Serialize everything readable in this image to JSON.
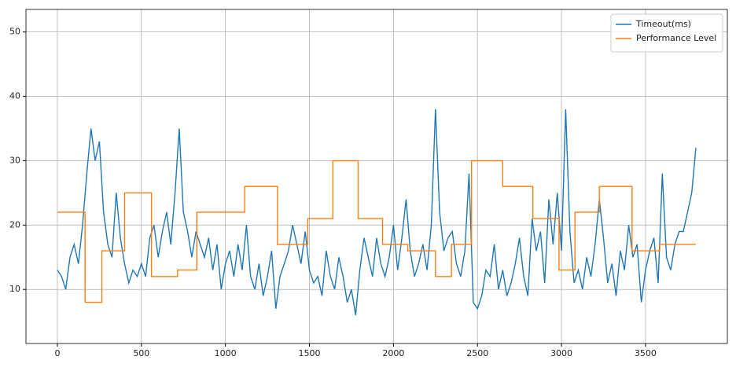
{
  "chart_data": {
    "type": "line",
    "grid": true,
    "legend": "upper right",
    "xlim": [
      -187,
      3987
    ],
    "xticks": [
      0,
      500,
      1000,
      1500,
      2000,
      2500,
      3000,
      3500
    ],
    "ylim": [
      1.6,
      53.5
    ],
    "yticks": [
      10,
      20,
      30,
      40,
      50
    ],
    "series": [
      {
        "name": "Timeout(ms)",
        "color": "#1f77b4",
        "x": [
          0,
          25,
          50,
          75,
          100,
          125,
          150,
          175,
          200,
          225,
          250,
          275,
          300,
          325,
          350,
          375,
          400,
          425,
          450,
          475,
          500,
          525,
          550,
          575,
          600,
          625,
          650,
          675,
          700,
          725,
          750,
          775,
          800,
          825,
          850,
          875,
          900,
          925,
          950,
          975,
          1000,
          1025,
          1050,
          1075,
          1100,
          1125,
          1150,
          1175,
          1200,
          1225,
          1250,
          1275,
          1300,
          1325,
          1350,
          1375,
          1400,
          1425,
          1450,
          1475,
          1500,
          1525,
          1550,
          1575,
          1600,
          1625,
          1650,
          1675,
          1700,
          1725,
          1750,
          1775,
          1800,
          1825,
          1850,
          1875,
          1900,
          1925,
          1950,
          1975,
          2000,
          2025,
          2050,
          2075,
          2100,
          2125,
          2150,
          2175,
          2200,
          2225,
          2250,
          2275,
          2300,
          2325,
          2350,
          2375,
          2400,
          2425,
          2450,
          2475,
          2500,
          2525,
          2550,
          2575,
          2600,
          2625,
          2650,
          2675,
          2700,
          2725,
          2750,
          2775,
          2800,
          2825,
          2850,
          2875,
          2900,
          2925,
          2950,
          2975,
          3000,
          3025,
          3050,
          3075,
          3100,
          3125,
          3150,
          3175,
          3200,
          3225,
          3250,
          3275,
          3300,
          3325,
          3350,
          3375,
          3400,
          3425,
          3450,
          3475,
          3500,
          3525,
          3550,
          3575,
          3600,
          3625,
          3650,
          3675,
          3700,
          3725,
          3750,
          3775,
          3800
        ],
        "values": [
          13,
          12,
          10,
          15,
          17,
          14,
          20,
          28,
          35,
          30,
          33,
          22,
          17,
          15,
          25,
          18,
          14,
          11,
          13,
          12,
          14,
          12,
          18,
          20,
          15,
          19,
          22,
          17,
          25,
          35,
          22,
          19,
          15,
          19,
          17,
          15,
          18,
          13,
          17,
          10,
          14,
          16,
          12,
          17,
          13,
          20,
          12,
          10,
          14,
          9,
          12,
          16,
          7,
          12,
          14,
          16,
          20,
          17,
          14,
          19,
          13,
          11,
          12,
          9,
          16,
          12,
          10,
          15,
          12,
          8,
          10,
          6,
          13,
          18,
          15,
          12,
          18,
          14,
          12,
          15,
          20,
          13,
          18,
          24,
          16,
          12,
          14,
          17,
          13,
          20,
          38,
          22,
          16,
          18,
          19,
          14,
          12,
          16,
          28,
          8,
          7,
          9,
          13,
          12,
          17,
          10,
          13,
          9,
          11,
          14,
          18,
          12,
          9,
          21,
          16,
          19,
          11,
          24,
          17,
          25,
          16,
          38,
          19,
          11,
          13,
          10,
          15,
          12,
          17,
          24,
          18,
          11,
          14,
          9,
          16,
          13,
          20,
          15,
          17,
          8,
          13,
          16,
          18,
          11,
          28,
          15,
          13,
          17,
          19,
          19,
          22,
          25,
          32
        ]
      },
      {
        "name": "Performance Level",
        "color": "#ff7f0e",
        "x": [
          0,
          165,
          165,
          265,
          265,
          400,
          400,
          560,
          560,
          715,
          715,
          830,
          830,
          1115,
          1115,
          1310,
          1310,
          1490,
          1490,
          1640,
          1640,
          1790,
          1790,
          1935,
          1935,
          2085,
          2085,
          2250,
          2250,
          2345,
          2345,
          2465,
          2465,
          2650,
          2650,
          2830,
          2830,
          2985,
          2985,
          3080,
          3080,
          3225,
          3225,
          3420,
          3420,
          3585,
          3585,
          3800
        ],
        "values": [
          22,
          22,
          8,
          8,
          16,
          16,
          25,
          25,
          12,
          12,
          13,
          13,
          22,
          22,
          26,
          26,
          17,
          17,
          21,
          21,
          30,
          30,
          21,
          21,
          17,
          17,
          16,
          16,
          12,
          12,
          17,
          17,
          30,
          30,
          26,
          26,
          21,
          21,
          13,
          13,
          22,
          22,
          26,
          26,
          16,
          16,
          17,
          17
        ]
      }
    ]
  }
}
